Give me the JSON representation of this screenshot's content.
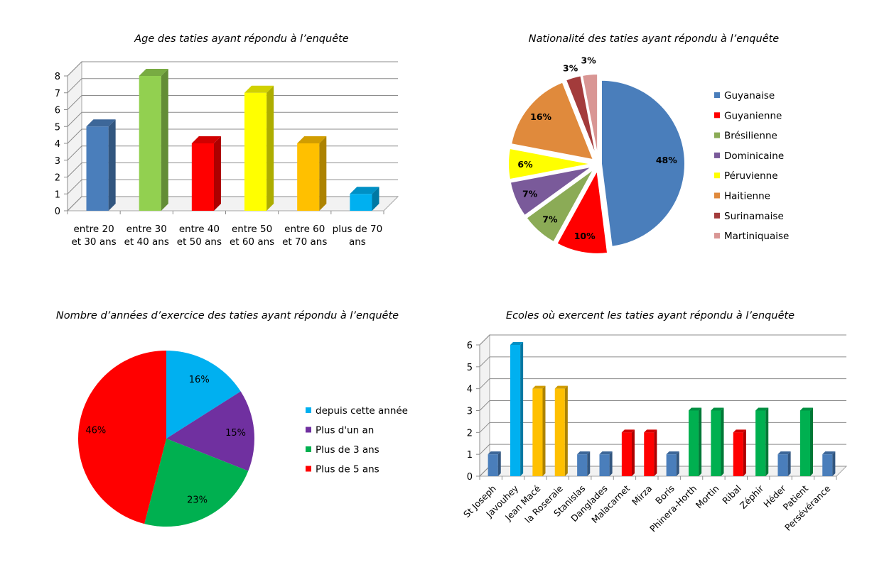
{
  "chart_data": [
    {
      "type": "bar",
      "title": "Age des taties ayant répondu à l’enquête",
      "categories": [
        [
          "entre 20",
          "et 30 ans"
        ],
        [
          "entre 30",
          "et 40 ans"
        ],
        [
          "entre 40",
          "et 50 ans"
        ],
        [
          "entre 50",
          "et 60 ans"
        ],
        [
          "entre 60",
          "et 70 ans"
        ],
        [
          "plus de 70",
          "ans"
        ]
      ],
      "values": [
        5,
        8,
        4,
        7,
        4,
        1
      ],
      "colors": [
        "#4a7ebb",
        "#92d050",
        "#ff0000",
        "#ffff00",
        "#ffc000",
        "#00b0f0"
      ],
      "ylim": [
        0,
        8
      ],
      "yticks": [
        0,
        1,
        2,
        3,
        4,
        5,
        6,
        7,
        8
      ],
      "grid": true,
      "style": "3d"
    },
    {
      "type": "pie",
      "title": "Nationalité des taties ayant répondu à l’enquête",
      "labels": [
        "Guyanaise",
        "Guyanienne",
        "Brésilienne",
        "Dominicaine",
        "Péruvienne",
        "Haitienne",
        "Surinamaise",
        "Martiniquaise"
      ],
      "values": [
        48,
        10,
        7,
        7,
        6,
        16,
        3,
        3
      ],
      "value_labels": [
        "48%",
        "10%",
        "7%",
        "7%",
        "6%",
        "16%",
        "3%",
        "3%"
      ],
      "colors": [
        "#4a7ebb",
        "#ff0000",
        "#8bab56",
        "#7a5a9a",
        "#ffff00",
        "#e08a3c",
        "#a33b3b",
        "#d99694"
      ],
      "legend": "right",
      "exploded": true
    },
    {
      "type": "pie",
      "title": "Nombre d’années d’exercice des taties ayant répondu à l’enquête",
      "labels": [
        "depuis cette année",
        "Plus d'un an",
        "Plus de 3 ans",
        "Plus de 5 ans"
      ],
      "values": [
        16,
        15,
        23,
        46
      ],
      "value_labels": [
        "16%",
        "15%",
        "23%",
        "46%"
      ],
      "colors": [
        "#00b0f0",
        "#7030a0",
        "#00b050",
        "#ff0000"
      ],
      "legend": "right"
    },
    {
      "type": "bar",
      "title": "Ecoles où exercent les taties ayant répondu à l’enquête",
      "categories": [
        "St Joseph",
        "Javouhey",
        "Jean Macé",
        "la Roseraie",
        "Stanislas",
        "Danglades",
        "Malacarnet",
        "Mirza",
        "Boris",
        "Phinera-Horth",
        "Mortin",
        "Ribal",
        "Zéphir",
        "Héder",
        "Patient",
        "Persévérance"
      ],
      "values": [
        1,
        6,
        4,
        4,
        1,
        1,
        2,
        2,
        1,
        3,
        3,
        2,
        3,
        1,
        3,
        1
      ],
      "colors": [
        "#4a7ebb",
        "#00b0f0",
        "#ffc000",
        "#ffc000",
        "#4a7ebb",
        "#4a7ebb",
        "#ff0000",
        "#ff0000",
        "#4a7ebb",
        "#00b050",
        "#00b050",
        "#ff0000",
        "#00b050",
        "#4a7ebb",
        "#00b050",
        "#4a7ebb"
      ],
      "ylim": [
        0,
        6
      ],
      "yticks": [
        0,
        1,
        2,
        3,
        4,
        5,
        6
      ],
      "grid": true,
      "style": "3d"
    }
  ]
}
